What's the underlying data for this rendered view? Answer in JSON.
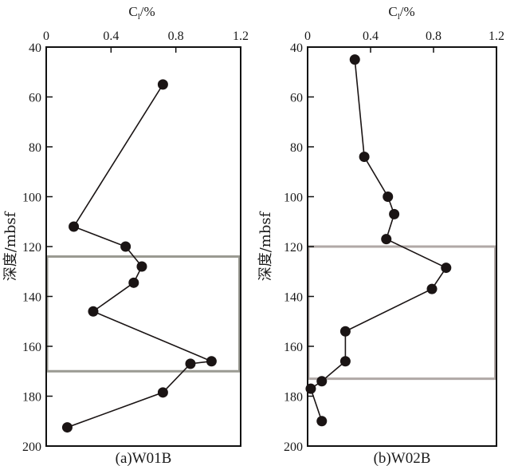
{
  "chart_data": [
    {
      "type": "line",
      "panel_label": "(a)W01B",
      "xlabel_main": "C",
      "xlabel_sub": "l",
      "xlabel_suffix": "/%",
      "ylabel": "深度/mbsf",
      "xlim": [
        0,
        1.2
      ],
      "ylim": [
        40,
        200
      ],
      "y_inverted": true,
      "x_axis_position": "top",
      "x_ticks": [
        0,
        0.4,
        0.8,
        1.2
      ],
      "x_tick_labels": [
        "0",
        "0.4",
        "0.8",
        "1.2"
      ],
      "y_ticks": [
        40,
        60,
        80,
        100,
        120,
        140,
        160,
        180,
        200
      ],
      "y_tick_labels": [
        "40",
        "60",
        "80",
        "100",
        "120",
        "140",
        "160",
        "180",
        "200"
      ],
      "grid": false,
      "highlight_band": {
        "depth_top": 124,
        "depth_bottom": 170,
        "color": "#9a9a92"
      },
      "series": [
        {
          "name": "W01B",
          "color": "#1a1414",
          "points": [
            {
              "x": 0.72,
              "y": 55
            },
            {
              "x": 0.17,
              "y": 112
            },
            {
              "x": 0.49,
              "y": 120
            },
            {
              "x": 0.59,
              "y": 128
            },
            {
              "x": 0.54,
              "y": 134.5
            },
            {
              "x": 0.29,
              "y": 146
            },
            {
              "x": 1.02,
              "y": 166
            },
            {
              "x": 0.89,
              "y": 167
            },
            {
              "x": 0.72,
              "y": 178.5
            },
            {
              "x": 0.13,
              "y": 192.5
            }
          ]
        }
      ]
    },
    {
      "type": "line",
      "panel_label": "(b)W02B",
      "xlabel_main": "C",
      "xlabel_sub": "l",
      "xlabel_suffix": "/%",
      "ylabel": "深度/mbsf",
      "xlim": [
        0,
        1.2
      ],
      "ylim": [
        40,
        200
      ],
      "y_inverted": true,
      "x_axis_position": "top",
      "x_ticks": [
        0,
        0.4,
        0.8,
        1.2
      ],
      "x_tick_labels": [
        "0",
        "0.4",
        "0.8",
        "1.2"
      ],
      "y_ticks": [
        40,
        60,
        80,
        100,
        120,
        140,
        160,
        180,
        200
      ],
      "y_tick_labels": [
        "40",
        "60",
        "80",
        "100",
        "120",
        "140",
        "160",
        "180",
        "200"
      ],
      "grid": false,
      "highlight_band": {
        "depth_top": 120,
        "depth_bottom": 173,
        "color": "#b0a8a6"
      },
      "series": [
        {
          "name": "W02B",
          "color": "#1a1414",
          "points": [
            {
              "x": 0.3,
              "y": 45
            },
            {
              "x": 0.36,
              "y": 84
            },
            {
              "x": 0.51,
              "y": 100
            },
            {
              "x": 0.55,
              "y": 107
            },
            {
              "x": 0.5,
              "y": 117
            },
            {
              "x": 0.88,
              "y": 128.5
            },
            {
              "x": 0.79,
              "y": 137
            },
            {
              "x": 0.24,
              "y": 154
            },
            {
              "x": 0.24,
              "y": 166
            },
            {
              "x": 0.09,
              "y": 174
            },
            {
              "x": 0.02,
              "y": 177
            },
            {
              "x": 0.09,
              "y": 190
            }
          ]
        }
      ]
    }
  ]
}
